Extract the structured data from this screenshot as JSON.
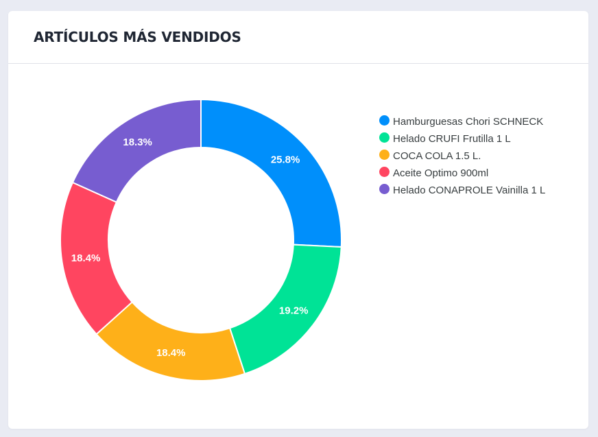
{
  "card": {
    "title": "ARTÍCULOS MÁS VENDIDOS"
  },
  "chart_data": {
    "type": "pie",
    "variant": "donut",
    "title": "ARTÍCULOS MÁS VENDIDOS",
    "categories": [
      "Hamburguesas Chori SCHNECK",
      "Helado CRUFI Frutilla 1 L",
      "COCA COLA 1.5 L.",
      "Aceite Optimo 900ml",
      "Helado CONAPROLE Vainilla 1 L"
    ],
    "values": [
      25.8,
      19.2,
      18.4,
      18.4,
      18.3
    ],
    "labels": [
      "25.8%",
      "19.2%",
      "18.4%",
      "18.4%",
      "18.3%"
    ],
    "colors": [
      "#008ffb",
      "#00e396",
      "#feb019",
      "#ff4560",
      "#775dd0"
    ],
    "legend_position": "right"
  }
}
